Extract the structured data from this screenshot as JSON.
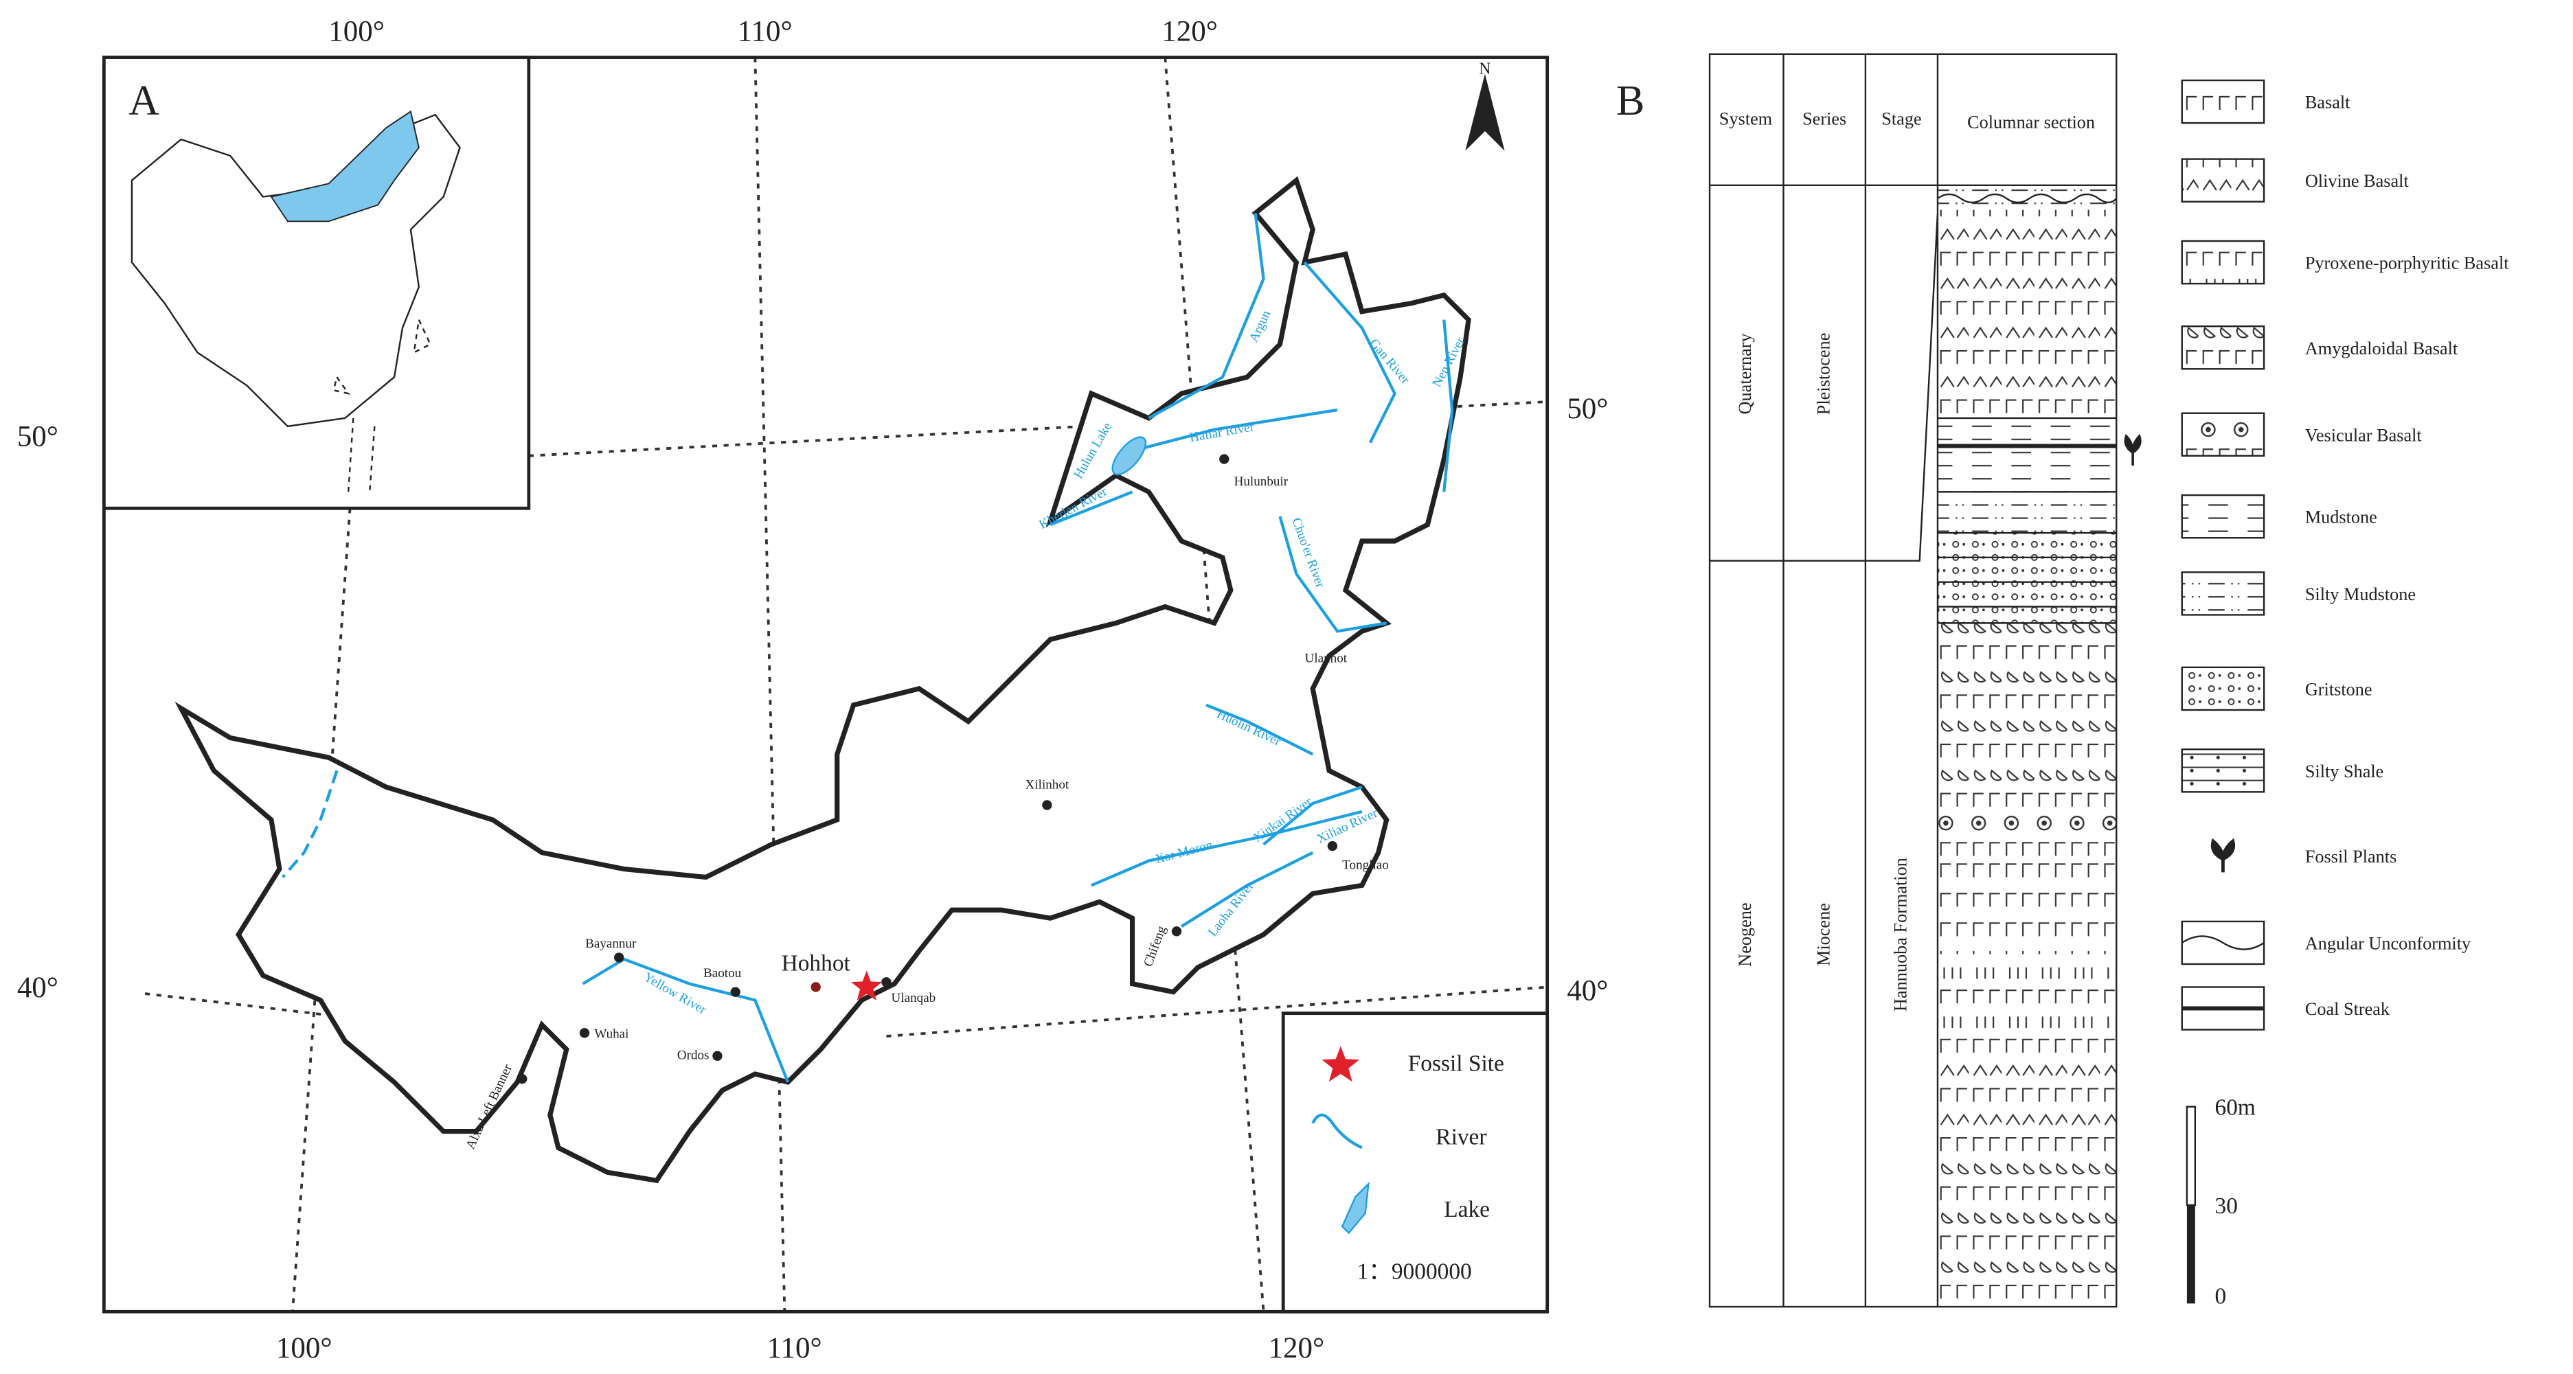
{
  "panel_a": {
    "label": "A",
    "north": "N",
    "graticule": {
      "top": [
        "100°",
        "110°",
        "120°"
      ],
      "bottom": [
        "100°",
        "110°",
        "120°"
      ],
      "left": [
        "50°",
        "40°"
      ],
      "right": [
        "50°",
        "40°"
      ]
    },
    "capital": "Hohhot",
    "places": [
      "Hulunbuir",
      "Ulanhot",
      "Xilinhot",
      "Tongliao",
      "Chifeng",
      "Ulanqab",
      "Baotou",
      "Bayannur",
      "Wuhai",
      "Ordos",
      "Alxa Left Banner"
    ],
    "rivers": [
      "Argun",
      "Gan River",
      "Nen River",
      "Hailar River",
      "Kherlen River",
      "Chuo'er River",
      "Huolin River",
      "Xinkai River",
      "Xiliao River",
      "Xar Moron",
      "Laoha River",
      "Yellow River"
    ],
    "lake": "Hulun Lake",
    "legend": {
      "items": [
        "Fossil Site",
        "River",
        "Lake"
      ],
      "scale": "1：9000000"
    }
  },
  "panel_b": {
    "label": "B",
    "headers": [
      "System",
      "Series",
      "Stage",
      "Columnar section"
    ],
    "systems": [
      "Quaternary",
      "Neogene"
    ],
    "series": [
      "Pleistocene",
      "Miocene"
    ],
    "stage": "Hannuoba Formation",
    "legend": [
      "Basalt",
      "Olivine Basalt",
      "Pyroxene-porphyritic Basalt",
      "Amygdaloidal Basalt",
      "Vesicular Basalt",
      "Mudstone",
      "Silty Mudstone",
      "Gritstone",
      "Silty Shale",
      "Fossil Plants",
      "Angular Unconformity",
      "Coal Streak"
    ],
    "scale_bar": [
      "60m",
      "30",
      "0"
    ]
  }
}
